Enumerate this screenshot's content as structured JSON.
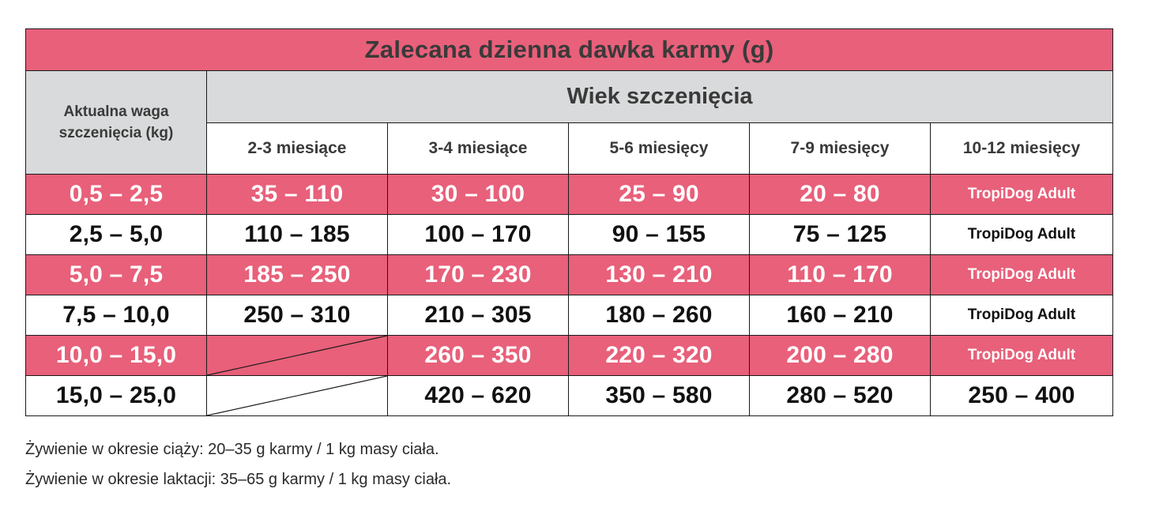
{
  "table": {
    "title": "Zalecana dzienna dawka karmy (g)",
    "weight_header": "Aktualna waga szczenięcia (kg)",
    "age_header": "Wiek szczenięcia",
    "age_columns": [
      "2-3 miesiące",
      "3-4 miesiące",
      "5-6 miesięcy",
      "7-9 miesięcy",
      "10-12 miesięcy"
    ],
    "rows": [
      {
        "weight": "0,5 – 2,5",
        "values": [
          "35 – 110",
          "30 – 100",
          "25 – 90",
          "20 – 80",
          "TropiDog Adult"
        ]
      },
      {
        "weight": "2,5 – 5,0",
        "values": [
          "110 – 185",
          "100 – 170",
          "90 – 155",
          "75 – 125",
          "TropiDog Adult"
        ]
      },
      {
        "weight": "5,0 – 7,5",
        "values": [
          "185 – 250",
          "170 – 230",
          "130 – 210",
          "110 – 170",
          "TropiDog Adult"
        ]
      },
      {
        "weight": "7,5 – 10,0",
        "values": [
          "250 – 310",
          "210 – 305",
          "180 – 260",
          "160 – 210",
          "TropiDog Adult"
        ]
      },
      {
        "weight": "10,0 – 15,0",
        "values": [
          "",
          "260 – 350",
          "220 – 320",
          "200 – 280",
          "TropiDog Adult"
        ]
      },
      {
        "weight": "15,0 – 25,0",
        "values": [
          "",
          "420 – 620",
          "350 – 580",
          "280 – 520",
          "250 – 400"
        ]
      }
    ]
  },
  "notes": [
    "Żywienie w okresie ciąży: 20–35 g karmy / 1 kg masy ciała.",
    "Żywienie w okresie laktacji: 35–65 g karmy / 1 kg masy ciała."
  ],
  "colors": {
    "accent": "#e8607a",
    "header_grey": "#d9dadb"
  }
}
